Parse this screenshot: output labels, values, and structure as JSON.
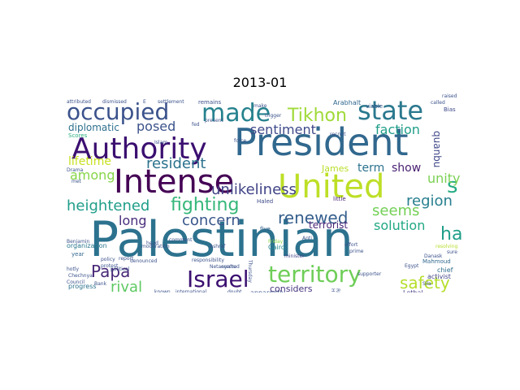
{
  "chart_data": {
    "type": "wordcloud",
    "title": "2013-01",
    "background": "#ffffff",
    "colormap": "viridis",
    "words": [
      {
        "text": "Palestinian",
        "weight": 1.0,
        "color": "#2c728e"
      },
      {
        "text": "President",
        "weight": 0.76,
        "color": "#31688e"
      },
      {
        "text": "United",
        "weight": 0.66,
        "color": "#bddf26"
      },
      {
        "text": "Intense",
        "weight": 0.64,
        "color": "#440154"
      },
      {
        "text": "Authority",
        "weight": 0.62,
        "color": "#3b0f70"
      },
      {
        "text": "state",
        "weight": 0.52,
        "color": "#2a788e"
      },
      {
        "text": "made",
        "weight": 0.5,
        "color": "#26828e"
      },
      {
        "text": "occupied",
        "weight": 0.48,
        "color": "#3b528b"
      },
      {
        "text": "Israel",
        "weight": 0.44,
        "color": "#3b0f70"
      },
      {
        "text": "territory",
        "weight": 0.42,
        "color": "#6ece58"
      },
      {
        "text": "fighting",
        "weight": 0.38,
        "color": "#35b779"
      },
      {
        "text": "heightened",
        "weight": 0.34,
        "color": "#1f9e89"
      },
      {
        "text": "Papa",
        "weight": 0.32,
        "color": "#482878"
      },
      {
        "text": "s",
        "weight": 0.32,
        "color": "#25ab82"
      },
      {
        "text": "Tikhon",
        "weight": 0.3,
        "color": "#a0da39"
      },
      {
        "text": "unlikeliness",
        "weight": 0.28,
        "color": "#414487"
      },
      {
        "text": "safety",
        "weight": 0.28,
        "color": "#b5de2b"
      },
      {
        "text": "ha",
        "weight": 0.28,
        "color": "#1f9e89"
      },
      {
        "text": "renewed",
        "weight": 0.26,
        "color": "#355f8d"
      },
      {
        "text": "concern",
        "weight": 0.24,
        "color": "#39568c"
      },
      {
        "text": "seems",
        "weight": 0.24,
        "color": "#73d056"
      },
      {
        "text": "rival",
        "weight": 0.24,
        "color": "#5ec962"
      },
      {
        "text": "resident",
        "weight": 0.22,
        "color": "#2c728e"
      },
      {
        "text": "sentiment",
        "weight": 0.22,
        "color": "#3e4989"
      },
      {
        "text": "faction",
        "weight": 0.22,
        "color": "#1f9e89"
      },
      {
        "text": "posed",
        "weight": 0.2,
        "color": "#3b528b"
      },
      {
        "text": "among",
        "weight": 0.2,
        "color": "#86d549"
      },
      {
        "text": "region",
        "weight": 0.2,
        "color": "#277f8e"
      },
      {
        "text": "solution",
        "weight": 0.2,
        "color": "#22a884"
      },
      {
        "text": "lifetime",
        "weight": 0.18,
        "color": "#c8e020"
      },
      {
        "text": "long",
        "weight": 0.18,
        "color": "#472d7b"
      },
      {
        "text": "unity",
        "weight": 0.18,
        "color": "#7ad151"
      },
      {
        "text": "term",
        "weight": 0.17,
        "color": "#2c728e"
      },
      {
        "text": "show",
        "weight": 0.17,
        "color": "#481f70"
      },
      {
        "text": "considers",
        "weight": 0.15,
        "color": "#46337e"
      },
      {
        "text": "diplomatic",
        "weight": 0.14,
        "color": "#2d708e"
      },
      {
        "text": "quanbu",
        "weight": 0.13,
        "color": "#3f4788"
      },
      {
        "text": "terrorist",
        "weight": 0.13,
        "color": "#482576"
      },
      {
        "text": "James",
        "weight": 0.11,
        "color": "#b8de29"
      },
      {
        "text": "Scores",
        "weight": 0.08,
        "color": "#29af7f"
      },
      {
        "text": "apparently",
        "weight": 0.09,
        "color": "#3b528b"
      },
      {
        "text": "organization",
        "weight": 0.09,
        "color": "#2a788e"
      },
      {
        "text": "progress",
        "weight": 0.08,
        "color": "#2c728e"
      },
      {
        "text": "Cairo",
        "weight": 0.08,
        "color": "#23888e"
      },
      {
        "text": "Arabhalt",
        "weight": 0.08,
        "color": "#31688e"
      },
      {
        "text": "Lethal",
        "weight": 0.08,
        "color": "#433e85"
      },
      {
        "text": "chief",
        "weight": 0.08,
        "color": "#2e6e8e"
      },
      {
        "text": "activist",
        "weight": 0.08,
        "color": "#404588"
      },
      {
        "text": "five",
        "weight": 0.07,
        "color": "#34608d"
      },
      {
        "text": "little",
        "weight": 0.07,
        "color": "#482475"
      },
      {
        "text": "year",
        "weight": 0.07,
        "color": "#31688e"
      },
      {
        "text": "remains",
        "weight": 0.07,
        "color": "#3b528b"
      },
      {
        "text": "Bias",
        "weight": 0.07,
        "color": "#3e4a89"
      },
      {
        "text": "Haled",
        "weight": 0.07,
        "color": "#3e4a89"
      },
      {
        "text": "Mahmoud",
        "weight": 0.06,
        "color": "#31688e"
      },
      {
        "text": "viable",
        "weight": 0.06,
        "color": "#38588c"
      },
      {
        "text": "supporter",
        "weight": 0.06,
        "color": "#3b528b"
      },
      {
        "text": "responsibility",
        "weight": 0.06,
        "color": "#3b528b"
      },
      {
        "text": "minister",
        "weight": 0.06,
        "color": "#414487"
      },
      {
        "text": "international",
        "weight": 0.06,
        "color": "#3b528b"
      },
      {
        "text": "political",
        "weight": 0.06,
        "color": "#3b528b"
      },
      {
        "text": "Danask",
        "weight": 0.06,
        "color": "#3b528b"
      },
      {
        "text": "attributed",
        "weight": 0.06,
        "color": "#3b528b"
      },
      {
        "text": "dismissed",
        "weight": 0.06,
        "color": "#3b528b"
      },
      {
        "text": "policy",
        "weight": 0.06,
        "color": "#3b528b"
      },
      {
        "text": "doubt",
        "weight": 0.06,
        "color": "#3b528b"
      },
      {
        "text": "erected",
        "weight": 0.06,
        "color": "#3b528b"
      },
      {
        "text": "Benjamin",
        "weight": 0.06,
        "color": "#3b528b"
      },
      {
        "text": "force",
        "weight": 0.06,
        "color": "#3b528b"
      },
      {
        "text": "sure",
        "weight": 0.06,
        "color": "#3b528b"
      },
      {
        "text": "recruit",
        "weight": 0.06,
        "color": "#3b528b"
      },
      {
        "text": "Netanyahu",
        "weight": 0.05,
        "color": "#3b528b"
      },
      {
        "text": "resolving",
        "weight": 0.05,
        "color": "#b5de2b"
      },
      {
        "text": "protest",
        "weight": 0.05,
        "color": "#3b528b"
      },
      {
        "text": "Chechnya",
        "weight": 0.05,
        "color": "#3b528b"
      },
      {
        "text": "settlement",
        "weight": 0.05,
        "color": "#3b528b"
      },
      {
        "text": "present",
        "weight": 0.05,
        "color": "#3b528b"
      },
      {
        "text": "comment",
        "weight": 0.05,
        "color": "#3b528b"
      },
      {
        "text": "effort",
        "weight": 0.05,
        "color": "#3b528b"
      },
      {
        "text": "prime",
        "weight": 0.05,
        "color": "#3b528b"
      },
      {
        "text": "Council",
        "weight": 0.05,
        "color": "#3b528b"
      },
      {
        "text": "met",
        "weight": 0.05,
        "color": "#3b528b"
      },
      {
        "text": "Rights",
        "weight": 0.05,
        "color": "#3b528b"
      },
      {
        "text": "Human",
        "weight": 0.05,
        "color": "#3b528b"
      },
      {
        "text": "Thursday",
        "weight": 0.05,
        "color": "#3b528b"
      },
      {
        "text": "Friday",
        "weight": 0.05,
        "color": "#8fd744"
      },
      {
        "text": "fed",
        "weight": 0.05,
        "color": "#3b528b"
      },
      {
        "text": "Egypt",
        "weight": 0.05,
        "color": "#3b528b"
      },
      {
        "text": "hotly",
        "weight": 0.05,
        "color": "#3b528b"
      },
      {
        "text": "report",
        "weight": 0.05,
        "color": "#3b528b"
      },
      {
        "text": "moderation",
        "weight": 0.05,
        "color": "#3b528b"
      },
      {
        "text": "make",
        "weight": 0.05,
        "color": "#3b528b"
      },
      {
        "text": "called",
        "weight": 0.05,
        "color": "#3b528b"
      },
      {
        "text": "raised",
        "weight": 0.05,
        "color": "#3b528b"
      },
      {
        "text": "known",
        "weight": 0.05,
        "color": "#3b528b"
      },
      {
        "text": "Islam",
        "weight": 0.05,
        "color": "#3b528b"
      },
      {
        "text": "Anti",
        "weight": 0.05,
        "color": "#3b528b"
      },
      {
        "text": "Ashraf",
        "weight": 0.05,
        "color": "#3b528b"
      },
      {
        "text": "Bank",
        "weight": 0.05,
        "color": "#3b528b"
      },
      {
        "text": "denounced",
        "weight": 0.05,
        "color": "#3b528b"
      },
      {
        "text": "trigger",
        "weight": 0.05,
        "color": "#3b528b"
      },
      {
        "text": "Drama",
        "weight": 0.05,
        "color": "#3b528b"
      },
      {
        "text": "Sila",
        "weight": 0.05,
        "color": "#3b528b"
      },
      {
        "text": "head",
        "weight": 0.05,
        "color": "#3b528b"
      },
      {
        "text": "E",
        "weight": 0.05,
        "color": "#3b528b"
      }
    ]
  }
}
